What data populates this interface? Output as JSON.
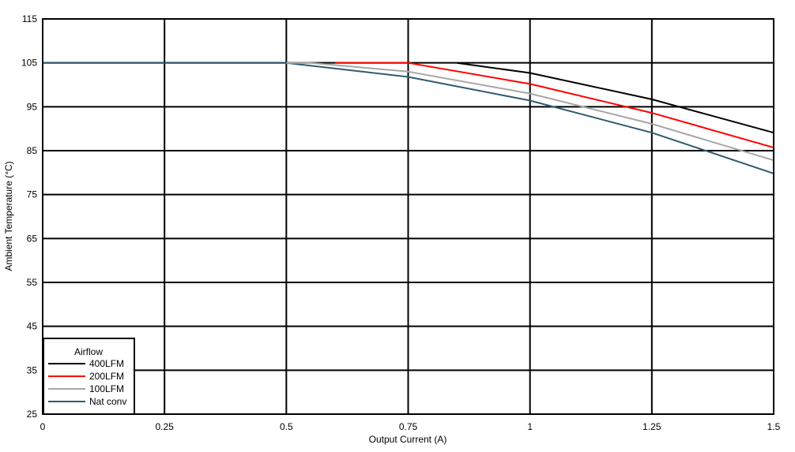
{
  "chart_data": {
    "type": "line",
    "title": "",
    "xlabel": "Output Current (A)",
    "ylabel": "Ambient Temperature (°C)",
    "xlim": [
      0,
      1.5
    ],
    "ylim": [
      25,
      115
    ],
    "x_ticks": [
      "0",
      "0.25",
      "0.5",
      "0.75",
      "1",
      "1.25",
      "1.5"
    ],
    "y_ticks": [
      "25",
      "35",
      "45",
      "55",
      "65",
      "75",
      "85",
      "95",
      "105",
      "115"
    ],
    "grid": true,
    "legend": {
      "title": "Airflow",
      "position": "lower-left"
    },
    "series": [
      {
        "name": "400LFM",
        "color": "#000000",
        "points": [
          [
            0.85,
            105
          ],
          [
            1.0,
            102.7
          ],
          [
            1.25,
            96.7
          ],
          [
            1.5,
            89.1
          ]
        ]
      },
      {
        "name": "200LFM",
        "color": "#ff0000",
        "points": [
          [
            0.6,
            105
          ],
          [
            0.75,
            105
          ],
          [
            1.0,
            100.2
          ],
          [
            1.25,
            93.6
          ],
          [
            1.5,
            85.7
          ]
        ]
      },
      {
        "name": "100LFM",
        "color": "#a6a6a6",
        "points": [
          [
            0.5,
            105
          ],
          [
            0.55,
            105
          ],
          [
            0.75,
            103.0
          ],
          [
            1.0,
            98.0
          ],
          [
            1.25,
            91.1
          ],
          [
            1.5,
            82.8
          ]
        ]
      },
      {
        "name": "Nat conv",
        "color": "#2e5b6e",
        "points": [
          [
            0,
            105
          ],
          [
            0.5,
            105
          ],
          [
            0.75,
            101.8
          ],
          [
            1.0,
            96.4
          ],
          [
            1.25,
            89.1
          ],
          [
            1.5,
            79.8
          ]
        ]
      }
    ]
  }
}
